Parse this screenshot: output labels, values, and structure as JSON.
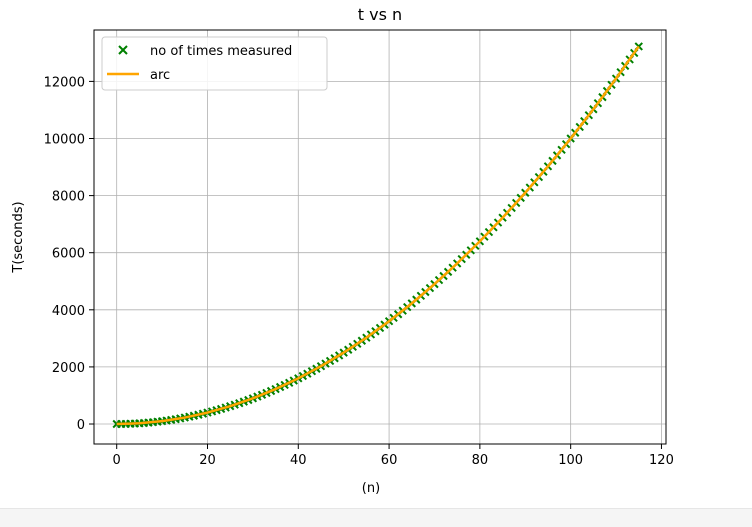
{
  "chart_data": {
    "type": "scatter",
    "title": "t vs n",
    "xlabel": "(n)",
    "ylabel": "T(seconds)",
    "xlim": [
      -5,
      121
    ],
    "ylim": [
      -700,
      13800
    ],
    "xticks": [
      0,
      20,
      40,
      60,
      80,
      100,
      120
    ],
    "yticks": [
      0,
      2000,
      4000,
      6000,
      8000,
      10000,
      12000
    ],
    "xtick_labels": [
      "0",
      "20",
      "40",
      "60",
      "80",
      "100",
      "120"
    ],
    "ytick_labels": [
      "0",
      "2000",
      "4000",
      "6000",
      "8000",
      "10000",
      "12000"
    ],
    "grid": true,
    "legend_position": "top-left",
    "series": [
      {
        "name": "no of times measured",
        "kind": "scatter",
        "marker": "x",
        "color": "#008000",
        "x": [
          0,
          1,
          2,
          3,
          4,
          5,
          6,
          7,
          8,
          9,
          10,
          11,
          12,
          13,
          14,
          15,
          16,
          17,
          18,
          19,
          20,
          21,
          22,
          23,
          24,
          25,
          26,
          27,
          28,
          29,
          30,
          31,
          32,
          33,
          34,
          35,
          36,
          37,
          38,
          39,
          40,
          41,
          42,
          43,
          44,
          45,
          46,
          47,
          48,
          49,
          50,
          51,
          52,
          53,
          54,
          55,
          56,
          57,
          58,
          59,
          60,
          61,
          62,
          63,
          64,
          65,
          66,
          67,
          68,
          69,
          70,
          71,
          72,
          73,
          74,
          75,
          76,
          77,
          78,
          79,
          80,
          81,
          82,
          83,
          84,
          85,
          86,
          87,
          88,
          89,
          90,
          91,
          92,
          93,
          94,
          95,
          96,
          97,
          98,
          99,
          100,
          101,
          102,
          103,
          104,
          105,
          106,
          107,
          108,
          109,
          110,
          111,
          112,
          113,
          114,
          115
        ],
        "y": [
          0,
          1,
          4,
          9,
          16,
          25,
          36,
          49,
          64,
          81,
          100,
          121,
          144,
          169,
          196,
          225,
          256,
          289,
          324,
          361,
          400,
          441,
          484,
          529,
          576,
          625,
          676,
          729,
          784,
          841,
          900,
          961,
          1024,
          1089,
          1156,
          1225,
          1296,
          1369,
          1444,
          1521,
          1600,
          1681,
          1764,
          1849,
          1936,
          2025,
          2116,
          2209,
          2304,
          2401,
          2500,
          2601,
          2704,
          2809,
          2916,
          3025,
          3136,
          3249,
          3364,
          3481,
          3600,
          3721,
          3844,
          3969,
          4096,
          4225,
          4356,
          4489,
          4624,
          4761,
          4900,
          5041,
          5184,
          5329,
          5476,
          5625,
          5776,
          5929,
          6084,
          6241,
          6400,
          6561,
          6724,
          6889,
          7056,
          7225,
          7396,
          7569,
          7744,
          7921,
          8100,
          8281,
          8464,
          8649,
          8836,
          9025,
          9216,
          9409,
          9604,
          9801,
          10000,
          10201,
          10404,
          10609,
          10816,
          11025,
          11236,
          11449,
          11664,
          11881,
          12100,
          12321,
          12544,
          12769,
          12996,
          13225
        ]
      },
      {
        "name": "arc",
        "kind": "line",
        "color": "#ffa500",
        "x": [
          0,
          5,
          10,
          15,
          20,
          25,
          30,
          35,
          40,
          45,
          50,
          55,
          60,
          65,
          70,
          75,
          80,
          85,
          90,
          95,
          100,
          105,
          110,
          115
        ],
        "y": [
          0,
          25,
          100,
          225,
          400,
          625,
          900,
          1225,
          1600,
          2025,
          2500,
          3025,
          3600,
          4225,
          4900,
          5625,
          6400,
          7225,
          8100,
          9025,
          10000,
          11025,
          12100,
          13225
        ]
      }
    ]
  }
}
